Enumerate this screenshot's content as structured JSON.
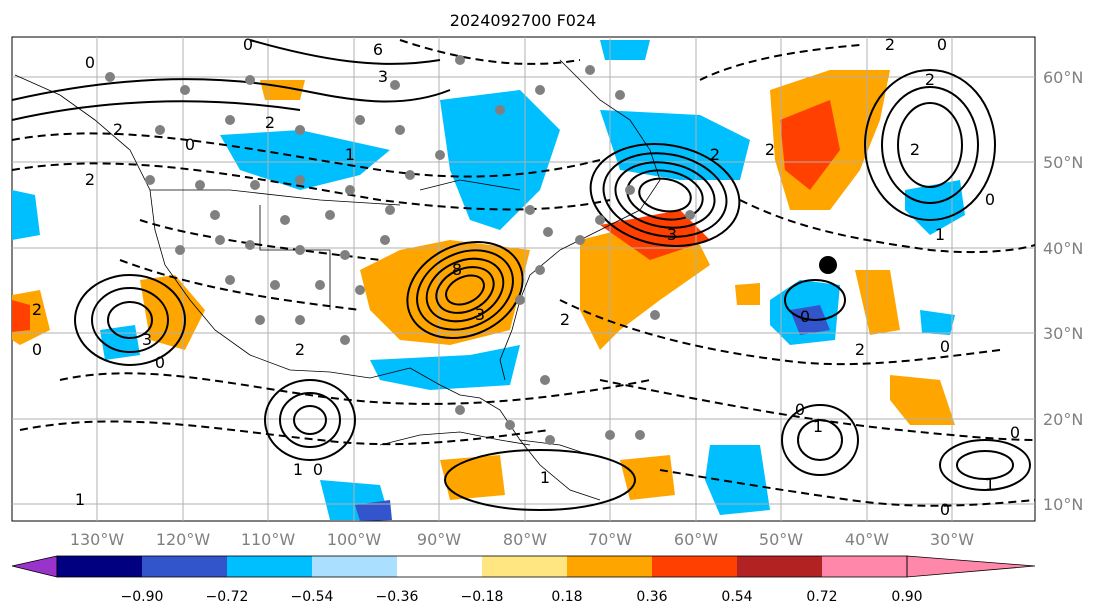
{
  "title": "2024092700 F024",
  "longitude_labels": [
    "130°W",
    "120°W",
    "110°W",
    "100°W",
    "90°W",
    "80°W",
    "70°W",
    "60°W",
    "50°W",
    "40°W",
    "30°W"
  ],
  "latitude_labels": [
    "60°N",
    "50°N",
    "40°N",
    "30°N",
    "20°N",
    "10°N"
  ],
  "colorbar": {
    "ticks": [
      "−0.90",
      "−0.72",
      "−0.54",
      "−0.36",
      "−0.18",
      "0.18",
      "0.36",
      "0.54",
      "0.72",
      "0.90"
    ],
    "colors": [
      "#9933cc",
      "#000080",
      "#3355cc",
      "#00bfff",
      "#aadfff",
      "#ffffff",
      "#ffe680",
      "#ffa500",
      "#ff4000",
      "#b22222",
      "#ff88aa"
    ]
  },
  "contour_labels": [
    "0",
    "1",
    "2",
    "3",
    "6",
    "8"
  ],
  "colors": {
    "land_points": "#808080",
    "storm_marker": "#000000",
    "grid": "#b0b0b0"
  }
}
